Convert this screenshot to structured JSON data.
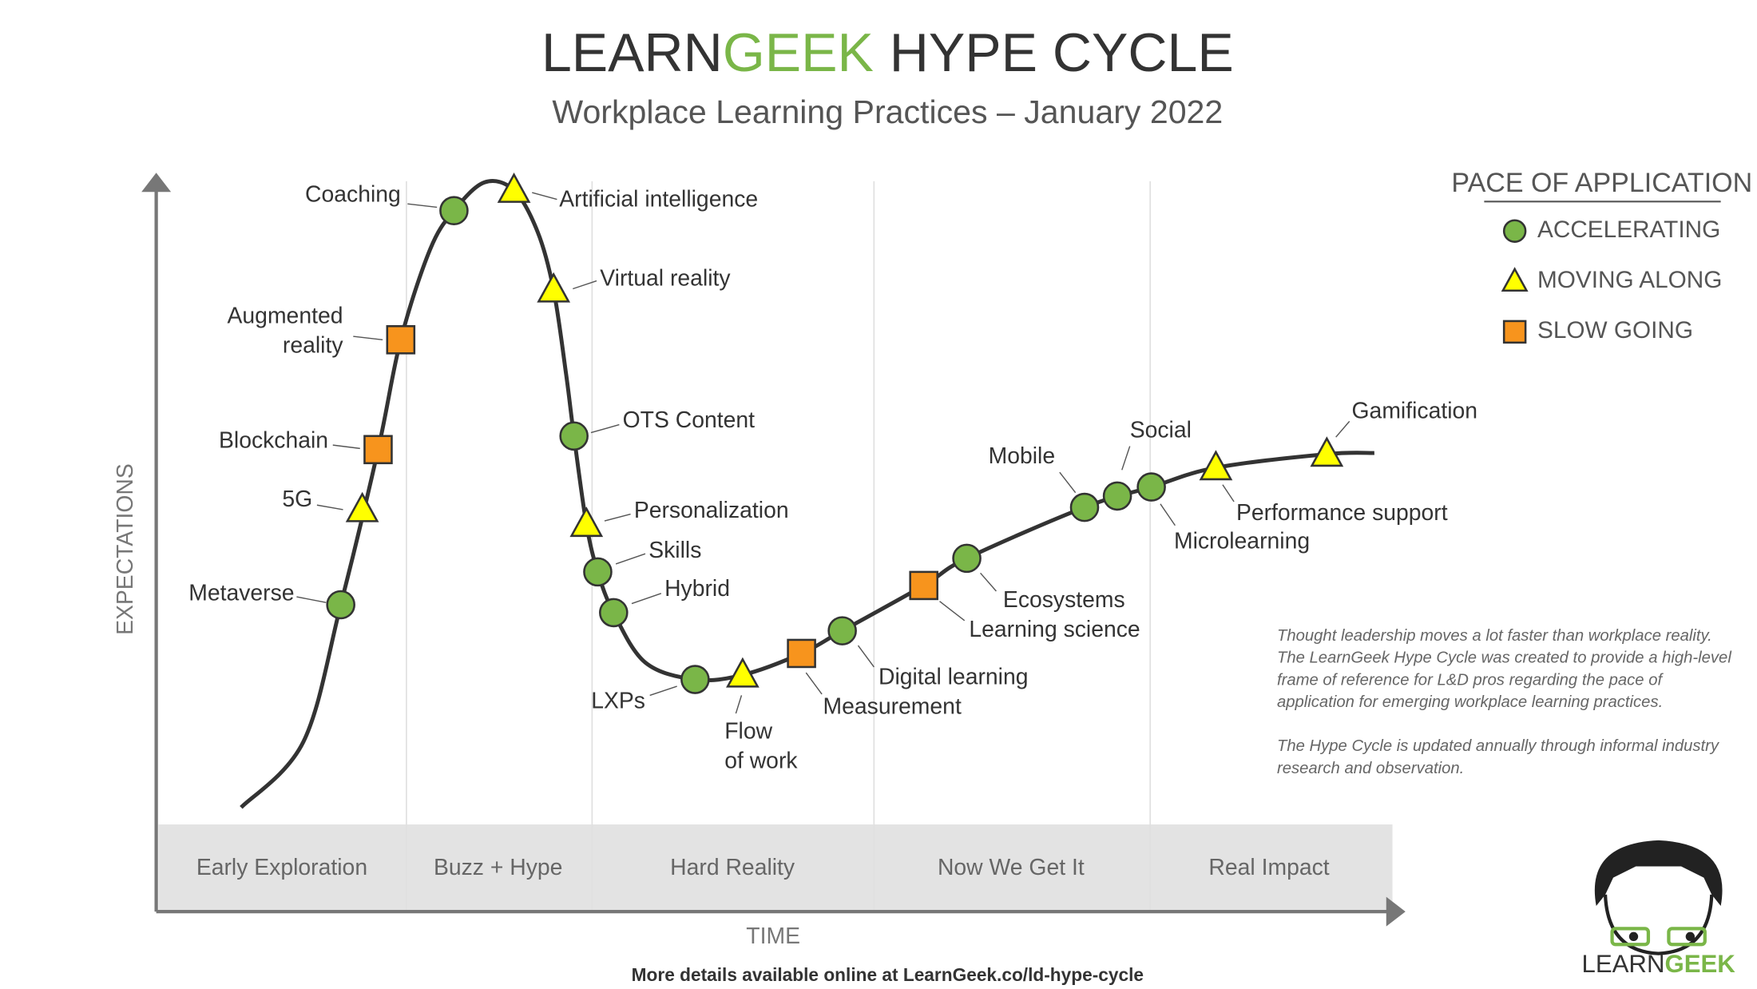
{
  "header": {
    "title": {
      "part1": "LEARN",
      "part2": "GEEK",
      "part3": "HYPE CYCLE"
    },
    "subtitle": "Workplace Learning Practices – January 2022"
  },
  "axes": {
    "y_label": "EXPECTATIONS",
    "x_label": "TIME"
  },
  "phases": [
    "Early Exploration",
    "Buzz + Hype",
    "Hard Reality",
    "Now We Get It",
    "Real Impact"
  ],
  "legend": {
    "title": "PACE OF APPLICATION",
    "items": [
      {
        "label": "ACCELERATING",
        "shape": "circle",
        "color": "#7ab648"
      },
      {
        "label": "MOVING ALONG",
        "shape": "triangle",
        "color": "#ffff00"
      },
      {
        "label": "SLOW GOING",
        "shape": "square",
        "color": "#f7941d"
      }
    ]
  },
  "items": [
    {
      "label": [
        "Metaverse"
      ],
      "pace": 0
    },
    {
      "label": [
        "5G"
      ],
      "pace": 1
    },
    {
      "label": [
        "Blockchain"
      ],
      "pace": 2
    },
    {
      "label": [
        "Augmented",
        "reality"
      ],
      "pace": 2
    },
    {
      "label": [
        "Coaching"
      ],
      "pace": 0
    },
    {
      "label": [
        "Artificial intelligence"
      ],
      "pace": 1
    },
    {
      "label": [
        "Virtual reality"
      ],
      "pace": 1
    },
    {
      "label": [
        "OTS Content"
      ],
      "pace": 0
    },
    {
      "label": [
        "Personalization"
      ],
      "pace": 1
    },
    {
      "label": [
        "Skills"
      ],
      "pace": 0
    },
    {
      "label": [
        "Hybrid"
      ],
      "pace": 0
    },
    {
      "label": [
        "LXPs"
      ],
      "pace": 0
    },
    {
      "label": [
        "Flow",
        "of work"
      ],
      "pace": 1
    },
    {
      "label": [
        "Measurement"
      ],
      "pace": 2
    },
    {
      "label": [
        "Digital learning"
      ],
      "pace": 0
    },
    {
      "label": [
        "Learning science"
      ],
      "pace": 2
    },
    {
      "label": [
        "Ecosystems"
      ],
      "pace": 0
    },
    {
      "label": [
        "Mobile"
      ],
      "pace": 0
    },
    {
      "label": [
        "Social"
      ],
      "pace": 0
    },
    {
      "label": [
        "Microlearning"
      ],
      "pace": 0
    },
    {
      "label": [
        "Performance support"
      ],
      "pace": 1
    },
    {
      "label": [
        "Gamification"
      ],
      "pace": 1
    }
  ],
  "notes": [
    [
      "Thought leadership moves a lot faster than workplace reality.",
      "The LearnGeek Hype Cycle was created to provide a high-level",
      "frame of reference for L&D pros regarding the pace of",
      "application for emerging workplace learning practices."
    ],
    [
      "The Hype Cycle is updated annually through informal industry",
      "research and observation."
    ]
  ],
  "footer": "More details available online at LearnGeek.co/ld-hype-cycle",
  "logo": {
    "part1": "LEARN",
    "part2": "GEEK"
  }
}
